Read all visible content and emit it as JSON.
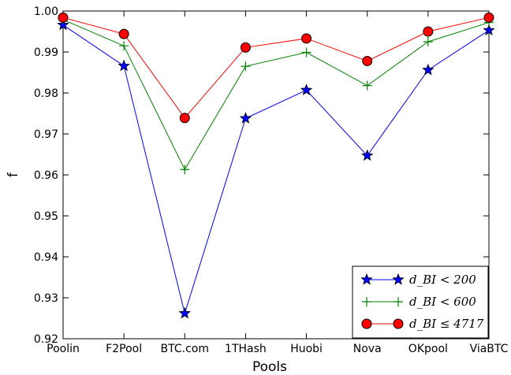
{
  "chart_data": {
    "type": "line",
    "xlabel": "Pools",
    "ylabel": "f",
    "categories": [
      "Poolin",
      "F2Pool",
      "BTC.com",
      "1THash",
      "Huobi",
      "Nova",
      "OKpool",
      "ViaBTC"
    ],
    "ylim": [
      0.92,
      1.0
    ],
    "yticks": [
      "0.92",
      "0.93",
      "0.94",
      "0.95",
      "0.96",
      "0.97",
      "0.98",
      "0.99",
      "1.00"
    ],
    "grid": false,
    "legend_position": "lower-right",
    "series": [
      {
        "name": "d_BI < 200",
        "color": "#0000ff",
        "marker": "star",
        "values": [
          0.9966,
          0.9866,
          0.9262,
          0.9738,
          0.9807,
          0.9647,
          0.9856,
          0.9953
        ]
      },
      {
        "name": "d_BI < 600",
        "color": "#008000",
        "marker": "plus",
        "values": [
          0.9979,
          0.9915,
          0.9613,
          0.9865,
          0.9899,
          0.9818,
          0.9925,
          0.9972
        ]
      },
      {
        "name": "d_BI ≤ 4717",
        "color": "#ff0000",
        "marker": "circle",
        "values": [
          0.9984,
          0.9944,
          0.9739,
          0.9911,
          0.9933,
          0.9878,
          0.995,
          0.9984
        ]
      }
    ]
  }
}
